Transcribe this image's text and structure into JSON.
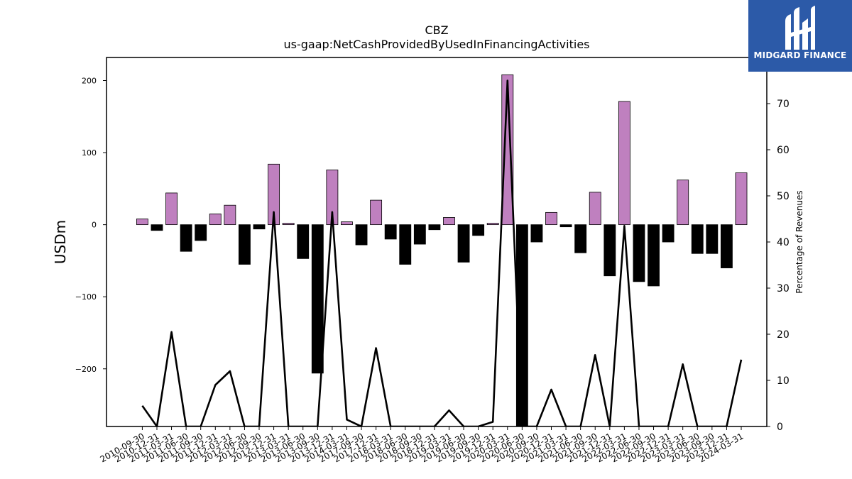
{
  "chart_data": {
    "type": "bar",
    "title": "CBZ",
    "subtitle": "us-gaap:NetCashProvidedByUsedInFinancingActivities",
    "ylabel": "USDm",
    "y2label": "Percentage of Revenues",
    "ylim": [
      -280,
      232
    ],
    "y2lim": [
      0,
      80
    ],
    "yticks": [
      -200,
      -100,
      0,
      100,
      200
    ],
    "yticks_labels": [
      "−200",
      "−100",
      "0",
      "100",
      "200"
    ],
    "y2ticks": [
      0,
      10,
      20,
      30,
      40,
      50,
      60,
      70,
      80
    ],
    "grid": false,
    "colors": {
      "positive_bar": "#bf80bf",
      "negative_bar": "#000000",
      "line": "#000000"
    },
    "categories": [
      "2010-09-30",
      "2010-12-31",
      "2011-03-31",
      "2011-06-30",
      "2011-09-30",
      "2011-12-31",
      "2012-03-31",
      "2012-06-30",
      "2012-09-30",
      "2012-12-31",
      "2013-03-31",
      "2013-06-30",
      "2013-09-30",
      "2013-12-31",
      "2014-03-31",
      "2017-09-30",
      "2017-12-31",
      "2018-03-31",
      "2018-06-30",
      "2018-09-30",
      "2018-12-31",
      "2019-03-31",
      "2019-06-30",
      "2019-09-30",
      "2019-12-31",
      "2020-03-31",
      "2020-06-30",
      "2020-09-30",
      "2020-12-31",
      "2021-03-31",
      "2021-06-30",
      "2021-09-30",
      "2021-12-31",
      "2022-03-31",
      "2022-06-30",
      "2022-09-30",
      "2022-12-31",
      "2023-03-31",
      "2023-06-30",
      "2023-09-30",
      "2023-12-31",
      "2024-03-31"
    ],
    "series": [
      {
        "values": [
          8,
          -8,
          44,
          -37,
          -22,
          15,
          27,
          -55,
          -6,
          84,
          2,
          -47,
          -206,
          76,
          4,
          -28,
          34,
          -20,
          -55,
          -27,
          -7,
          10,
          -52,
          -15,
          2,
          208,
          -280,
          -24,
          17,
          -3,
          -39,
          45,
          -71,
          171,
          -79,
          -85,
          -24,
          62,
          -40,
          -40,
          -60,
          72
        ]
      },
      {
        "values": [
          4.5,
          0,
          20.5,
          0,
          0,
          9,
          12,
          0,
          0,
          46.5,
          0,
          0,
          0,
          46.5,
          1.5,
          0,
          17,
          0,
          0,
          0,
          0,
          3.5,
          0,
          0,
          1,
          75,
          0,
          0,
          8,
          0,
          0,
          15.5,
          0,
          43.5,
          0,
          0,
          0,
          13.5,
          0,
          0,
          0,
          14.5
        ]
      }
    ]
  },
  "logo": {
    "text": "MIDGARD FINANCE"
  }
}
